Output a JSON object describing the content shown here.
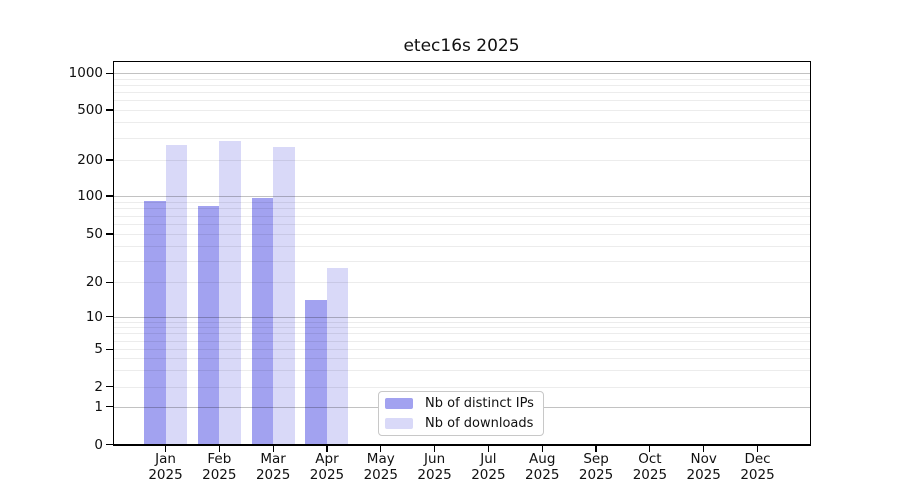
{
  "title": "etec16s 2025",
  "legend": {
    "entries": [
      {
        "label": "Nb of distinct IPs",
        "color": "#a2a2f0"
      },
      {
        "label": "Nb of downloads",
        "color": "#d9d9f8"
      }
    ]
  },
  "axes": {
    "y": {
      "tick_labels": [
        "0",
        "1",
        "2",
        "5",
        "10",
        "20",
        "50",
        "100",
        "200",
        "500",
        "1000"
      ],
      "tick_values": [
        0,
        1,
        2,
        5,
        10,
        20,
        50,
        100,
        200,
        500,
        1000
      ]
    },
    "x": {
      "months": [
        "Jan",
        "Feb",
        "Mar",
        "Apr",
        "May",
        "Jun",
        "Jul",
        "Aug",
        "Sep",
        "Oct",
        "Nov",
        "Dec"
      ],
      "year": "2025"
    }
  },
  "chart_data": {
    "type": "bar",
    "title": "etec16s 2025",
    "categories": [
      "Jan 2025",
      "Feb 2025",
      "Mar 2025",
      "Apr 2025",
      "May 2025",
      "Jun 2025",
      "Jul 2025",
      "Aug 2025",
      "Sep 2025",
      "Oct 2025",
      "Nov 2025",
      "Dec 2025"
    ],
    "series": [
      {
        "name": "Nb of distinct IPs",
        "color": "#a2a2f0",
        "values": [
          92,
          84,
          97,
          14,
          0,
          0,
          0,
          0,
          0,
          0,
          0,
          0
        ]
      },
      {
        "name": "Nb of downloads",
        "color": "#d9d9f8",
        "values": [
          262,
          281,
          256,
          26,
          0,
          0,
          0,
          0,
          0,
          0,
          0,
          0
        ]
      }
    ],
    "xlabel": "",
    "ylabel": "",
    "yscale": "symlog",
    "y_ticks": [
      0,
      1,
      2,
      5,
      10,
      20,
      50,
      100,
      200,
      500,
      1000
    ],
    "ylim": [
      0,
      1000
    ],
    "grid": "horizontal, minor + major (majors at 1, 10, 100, 1000), drawn over bars",
    "legend_position": "inside-bottom-center"
  },
  "colors": {
    "bar_distinct_ips": "#a2a2f0",
    "bar_downloads": "#d9d9f8",
    "grid_minor": "#ececec",
    "grid_major": "#c2c2c2",
    "axis": "#000000",
    "background": "#ffffff"
  }
}
